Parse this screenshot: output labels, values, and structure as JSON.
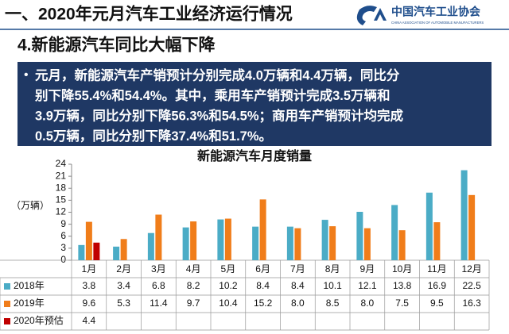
{
  "slide_title": "一、2020年元月汽车工业经济运行情况",
  "logo_text": "中国汽车工业协会",
  "logo_subtext": "CHINA ASSOCIATION OF AUTOMOBILE MANUFACTURERS",
  "section_title": "4.新能源汽车同比大幅下降",
  "bullet_lines": [
    "元月，新能源汽车产销预计分别完成4.0万辆和4.4万辆，同比分",
    "别下降55.4%和54.4%。其中，乘用车产销预计完成3.5万辆和",
    "3.9万辆，同比分别下降56.3%和54.5%；商用车产销预计均完成",
    "0.5万辆，同比分别下降37.4%和51.7%。"
  ],
  "chart_data": {
    "type": "bar",
    "title": "新能源汽车月度销量",
    "y_label": "（万辆）",
    "categories": [
      "1月",
      "2月",
      "3月",
      "4月",
      "5月",
      "6月",
      "7月",
      "8月",
      "9月",
      "10月",
      "11月",
      "12月"
    ],
    "ylim": [
      0,
      24
    ],
    "yticks": [
      0,
      3,
      6,
      9,
      12,
      15,
      18,
      21,
      24
    ],
    "series": [
      {
        "name": "2018年",
        "color": "#4bacc6",
        "values": [
          3.8,
          3.4,
          6.8,
          8.2,
          10.2,
          8.4,
          8.4,
          10.1,
          12.1,
          13.8,
          16.9,
          22.5
        ],
        "value_labels": [
          "3.8",
          "3.4",
          "6.8",
          "8.2",
          "10.2",
          "8.4",
          "8.4",
          "10.1",
          "12.1",
          "13.8",
          "16.9",
          "22.5"
        ]
      },
      {
        "name": "2019年",
        "color": "#f07d1a",
        "values": [
          9.6,
          5.3,
          11.4,
          9.7,
          10.4,
          15.2,
          8.0,
          8.5,
          8.0,
          7.5,
          9.5,
          16.3
        ],
        "value_labels": [
          "9.6",
          "5.3",
          "11.4",
          "9.7",
          "10.4",
          "15.2",
          "8.0",
          "8.5",
          "8.0",
          "7.5",
          "9.5",
          "16.3"
        ]
      },
      {
        "name": "2020年预估",
        "color": "#c00000",
        "values": [
          4.4,
          null,
          null,
          null,
          null,
          null,
          null,
          null,
          null,
          null,
          null,
          null
        ],
        "value_labels": [
          "4.4",
          null,
          null,
          null,
          null,
          null,
          null,
          null,
          null,
          null,
          null,
          null
        ]
      }
    ]
  }
}
